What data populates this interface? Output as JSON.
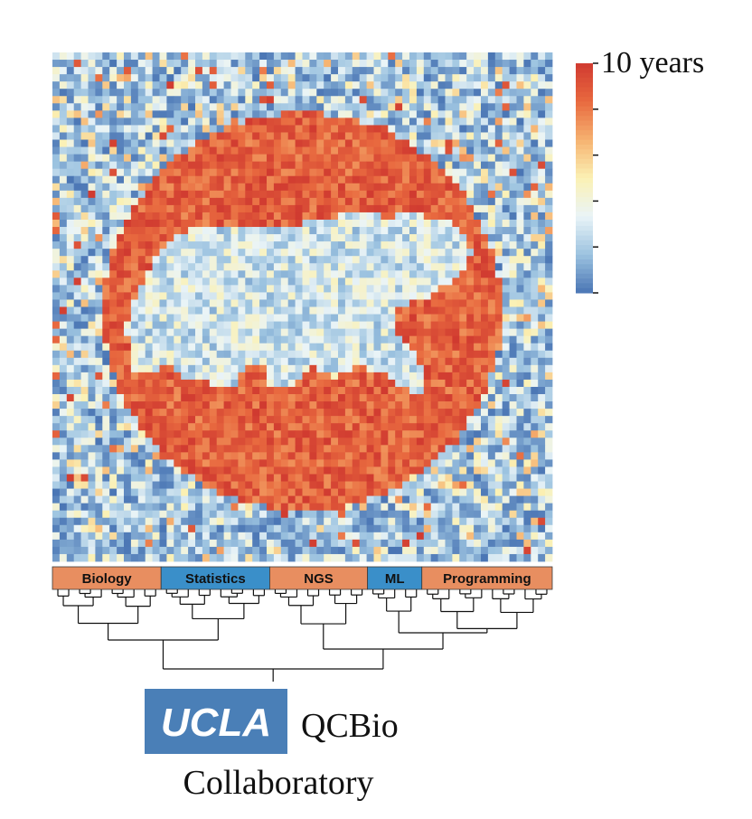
{
  "chart_data": {
    "type": "heatmap",
    "legend": {
      "top_label": "10 years",
      "color_stops": [
        "#4a75b4",
        "#9cc3e0",
        "#eaf4f7",
        "#fbf1b4",
        "#f6b270",
        "#e8693f",
        "#d03a30"
      ]
    },
    "column_groups": [
      {
        "label": "Biology",
        "color": "#e88e60",
        "count": 10
      },
      {
        "label": "Statistics",
        "color": "#3a8fc9",
        "count": 10
      },
      {
        "label": "NGS",
        "color": "#e88e60",
        "count": 9
      },
      {
        "label": "ML",
        "color": "#3a8fc9",
        "count": 5
      },
      {
        "label": "Programming",
        "color": "#e88e60",
        "count": 12
      }
    ]
  },
  "logo": {
    "badge_text": "UCLA",
    "badge_color": "#4a7fb7",
    "name": "QCBio",
    "subtitle": "Collaboratory"
  }
}
